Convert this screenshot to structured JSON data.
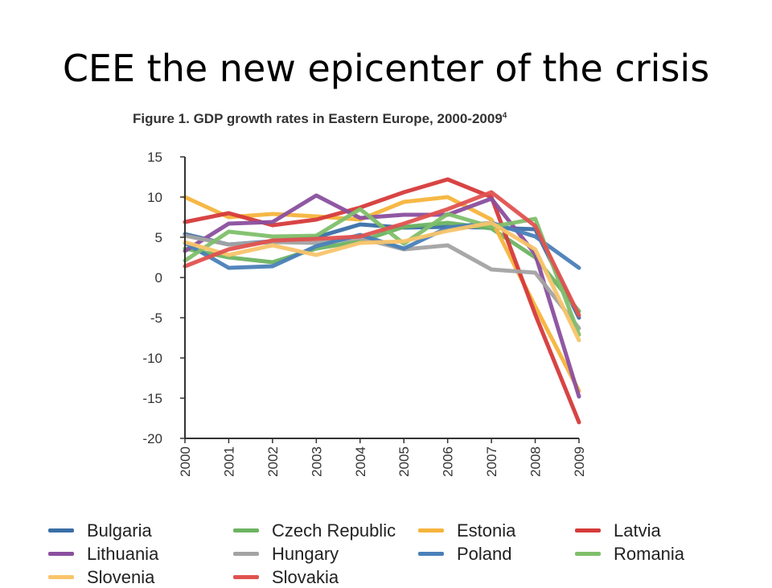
{
  "slide": {
    "title": "CEE the new epicenter of the crisis"
  },
  "figure": {
    "caption": "Figure 1. GDP growth rates in Eastern Europe, 2000-2009",
    "caption_footnote": "4"
  },
  "chart_data": {
    "type": "line",
    "title": "Figure 1. GDP growth rates in Eastern Europe, 2000-2009",
    "xlabel": "",
    "ylabel": "",
    "x": [
      "2000",
      "2001",
      "2002",
      "2003",
      "2004",
      "2005",
      "2006",
      "2007",
      "2008",
      "2009"
    ],
    "ylim": [
      -20,
      15
    ],
    "yticks": [
      15,
      10,
      5,
      0,
      -5,
      -10,
      -15,
      -20
    ],
    "grid": false,
    "legend_position": "bottom",
    "series": [
      {
        "name": "Bulgaria",
        "color": "#3a6fa6",
        "values": [
          5.4,
          4.1,
          4.5,
          5.0,
          6.6,
          6.2,
          6.3,
          6.2,
          6.0,
          -5.0
        ]
      },
      {
        "name": "Czech Republic",
        "color": "#6db362",
        "values": [
          3.6,
          2.5,
          1.9,
          3.6,
          4.5,
          6.3,
          6.8,
          6.1,
          2.5,
          -4.2
        ]
      },
      {
        "name": "Estonia",
        "color": "#f5b43c",
        "values": [
          10.0,
          7.5,
          7.9,
          7.6,
          7.2,
          9.4,
          10.0,
          7.2,
          -3.6,
          -14.1
        ]
      },
      {
        "name": "Latvia",
        "color": "#d63a3a",
        "values": [
          6.9,
          8.0,
          6.5,
          7.2,
          8.7,
          10.6,
          12.2,
          10.0,
          -4.6,
          -18.0
        ]
      },
      {
        "name": "Lithuania",
        "color": "#8a4f9e",
        "values": [
          3.3,
          6.7,
          6.9,
          10.2,
          7.4,
          7.8,
          7.8,
          9.8,
          2.9,
          -14.8
        ]
      },
      {
        "name": "Hungary",
        "color": "#a3a3a3",
        "values": [
          5.2,
          4.1,
          4.4,
          4.3,
          4.9,
          3.5,
          4.0,
          1.0,
          0.6,
          -6.3
        ]
      },
      {
        "name": "Poland",
        "color": "#4a80b8",
        "values": [
          4.3,
          1.2,
          1.4,
          3.9,
          5.3,
          3.6,
          6.2,
          6.8,
          5.1,
          1.2
        ]
      },
      {
        "name": "Romania",
        "color": "#7fbf6a",
        "values": [
          2.1,
          5.7,
          5.1,
          5.2,
          8.5,
          4.2,
          7.9,
          6.3,
          7.3,
          -7.1
        ]
      },
      {
        "name": "Slovenia",
        "color": "#f8c46a",
        "values": [
          4.4,
          2.8,
          4.0,
          2.8,
          4.3,
          4.5,
          5.8,
          6.8,
          3.5,
          -7.8
        ]
      },
      {
        "name": "Slovakia",
        "color": "#e0524f",
        "values": [
          1.4,
          3.5,
          4.6,
          4.8,
          5.1,
          6.7,
          8.5,
          10.6,
          6.4,
          -4.7
        ]
      }
    ]
  }
}
